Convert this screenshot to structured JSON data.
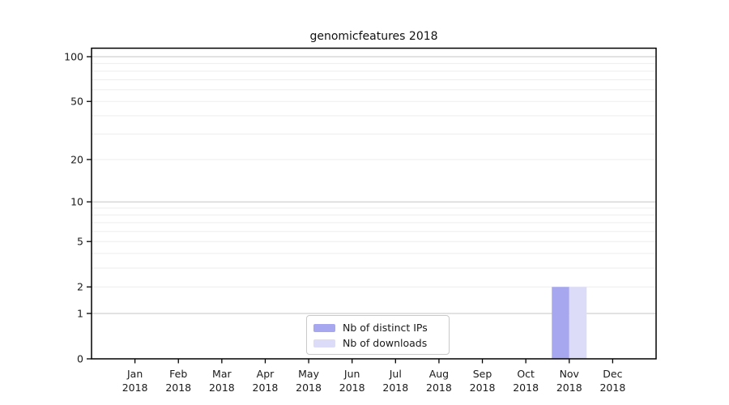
{
  "chart_data": {
    "type": "bar",
    "title": "genomicfeatures 2018",
    "categories": [
      "Jan 2018",
      "Feb 2018",
      "Mar 2018",
      "Apr 2018",
      "May 2018",
      "Jun 2018",
      "Jul 2018",
      "Aug 2018",
      "Sep 2018",
      "Oct 2018",
      "Nov 2018",
      "Dec 2018"
    ],
    "months": [
      {
        "month": "Jan",
        "year": "2018"
      },
      {
        "month": "Feb",
        "year": "2018"
      },
      {
        "month": "Mar",
        "year": "2018"
      },
      {
        "month": "Apr",
        "year": "2018"
      },
      {
        "month": "May",
        "year": "2018"
      },
      {
        "month": "Jun",
        "year": "2018"
      },
      {
        "month": "Jul",
        "year": "2018"
      },
      {
        "month": "Aug",
        "year": "2018"
      },
      {
        "month": "Sep",
        "year": "2018"
      },
      {
        "month": "Oct",
        "year": "2018"
      },
      {
        "month": "Nov",
        "year": "2018"
      },
      {
        "month": "Dec",
        "year": "2018"
      }
    ],
    "series": [
      {
        "name": "Nb of distinct IPs",
        "color": "#a7a7f0",
        "values": [
          0,
          0,
          0,
          0,
          0,
          0,
          0,
          0,
          0,
          0,
          2,
          0
        ]
      },
      {
        "name": "Nb of downloads",
        "color": "#dcdcf8",
        "values": [
          0,
          0,
          0,
          0,
          0,
          0,
          0,
          0,
          0,
          0,
          2,
          0
        ]
      }
    ],
    "xlabel": "",
    "ylabel": "",
    "y_axis": {
      "scale": "log10(value+1)",
      "tick_labels": [
        0,
        1,
        2,
        5,
        10,
        20,
        50,
        100
      ],
      "decade_gridlines": [
        1,
        10,
        100
      ],
      "minor_gridlines": [
        2,
        3,
        4,
        5,
        6,
        7,
        8,
        9,
        20,
        30,
        40,
        50,
        60,
        70,
        80,
        90
      ],
      "ylim": [
        0,
        113
      ]
    },
    "grid": true,
    "legend_position": "bottom-center"
  },
  "colors": {
    "spine": "#000000",
    "tick_label": "#1a1a1a",
    "gridline_decade": "#c6c6c6",
    "gridline_minor": "#ededed",
    "legend_border": "#c9c9c9"
  }
}
